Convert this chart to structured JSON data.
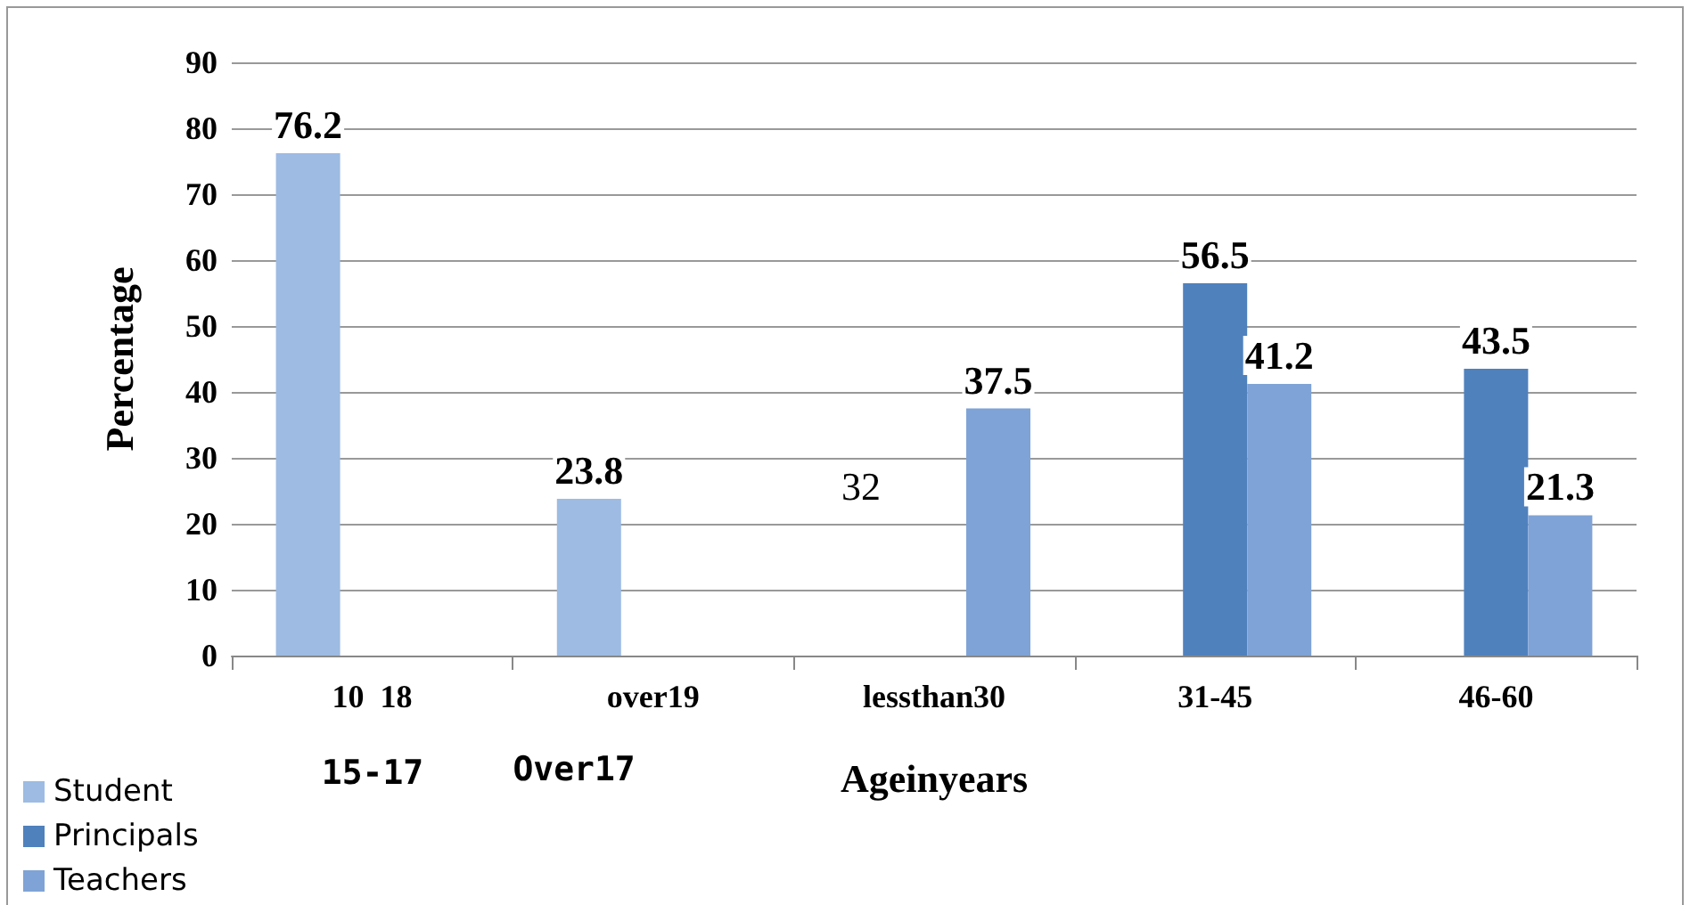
{
  "chart_data": {
    "type": "bar",
    "xlabel": "Ageinyears",
    "ylabel": "Percentage",
    "categories": [
      "10  18",
      "over19",
      "lessthan30",
      "31-45",
      "46-60"
    ],
    "series": [
      {
        "name": "Student",
        "color": "#9dbbe3",
        "values": [
          76.2,
          23.8,
          null,
          null,
          null
        ]
      },
      {
        "name": "Principals",
        "color": "#4f81bd",
        "values": [
          null,
          null,
          null,
          56.5,
          43.5
        ]
      },
      {
        "name": "Teachers",
        "color": "#7fa3d6",
        "values": [
          null,
          null,
          37.5,
          41.2,
          21.3
        ]
      }
    ],
    "ylim": [
      0,
      90
    ],
    "yticks": [
      0,
      10,
      20,
      30,
      40,
      50,
      60,
      70,
      80,
      90
    ],
    "grid": "y",
    "legend": "bottom left",
    "data_labels": true,
    "annotations": [
      "32",
      "15-17",
      "Over17"
    ]
  }
}
